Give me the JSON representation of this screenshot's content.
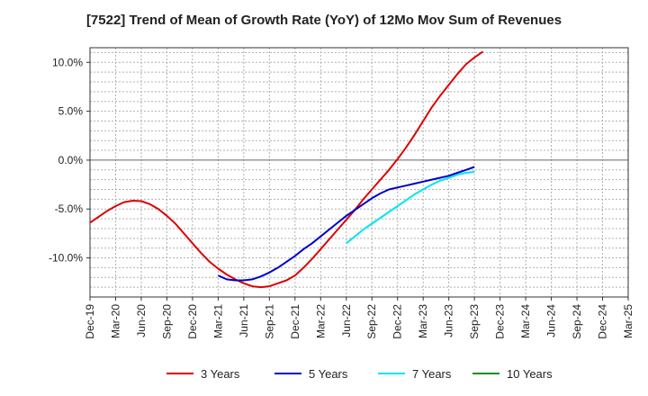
{
  "chart_data": {
    "type": "line",
    "title": "[7522]  Trend of Mean of Growth Rate (YoY) of 12Mo Mov Sum of Revenues",
    "xlabel": "",
    "ylabel": "",
    "x_categories": [
      "Dec-19",
      "Mar-20",
      "Jun-20",
      "Sep-20",
      "Dec-20",
      "Mar-21",
      "Jun-21",
      "Sep-21",
      "Dec-21",
      "Mar-22",
      "Jun-22",
      "Sep-22",
      "Dec-22",
      "Mar-23",
      "Jun-23",
      "Sep-23",
      "Dec-23",
      "Mar-24",
      "Jun-24",
      "Sep-24",
      "Dec-24",
      "Mar-25"
    ],
    "ylim": [
      -14.0,
      11.5
    ],
    "y_ticks": [
      10,
      5,
      0,
      -5,
      -10
    ],
    "y_tick_labels": [
      "10.0%",
      "5.0%",
      "0.0%",
      "-5.0%",
      "-10.0%"
    ],
    "grid": true,
    "series": [
      {
        "name": "3 Years",
        "color": "#dd0000",
        "start_index": 0,
        "values": [
          -6.4,
          -5.8,
          -5.2,
          -4.7,
          -4.3,
          -4.15,
          -4.2,
          -4.5,
          -5.0,
          -5.7,
          -6.5,
          -7.5,
          -8.5,
          -9.5,
          -10.4,
          -11.1,
          -11.7,
          -12.2,
          -12.6,
          -12.9,
          -13.0,
          -12.9,
          -12.6,
          -12.3,
          -11.8,
          -11.0,
          -10.1,
          -9.1,
          -8.1,
          -7.1,
          -6.1,
          -5.1,
          -4.0,
          -3.0,
          -2.0,
          -1.0,
          0.1,
          1.3,
          2.6,
          4.0,
          5.4,
          6.6,
          7.7,
          8.8,
          9.8,
          10.5,
          11.1
        ]
      },
      {
        "name": "5 Years",
        "color": "#0000cc",
        "start_index": 15,
        "values": [
          -11.8,
          -12.2,
          -12.3,
          -12.3,
          -12.2,
          -11.9,
          -11.5,
          -11.0,
          -10.4,
          -9.8,
          -9.1,
          -8.5,
          -7.8,
          -7.1,
          -6.4,
          -5.7,
          -5.1,
          -4.5,
          -3.9,
          -3.4,
          -3.0,
          -2.8,
          -2.6,
          -2.4,
          -2.2,
          -2.0,
          -1.8,
          -1.6,
          -1.3,
          -1.0,
          -0.7
        ]
      },
      {
        "name": "7 Years",
        "color": "#00e5ee",
        "start_index": 30,
        "values": [
          -8.5,
          -7.8,
          -7.1,
          -6.5,
          -5.9,
          -5.3,
          -4.7,
          -4.1,
          -3.5,
          -3.0,
          -2.5,
          -2.1,
          -1.8,
          -1.5,
          -1.3,
          -1.2
        ]
      },
      {
        "name": "10 Years",
        "color": "#228b22",
        "start_index": 0,
        "values": []
      }
    ]
  }
}
